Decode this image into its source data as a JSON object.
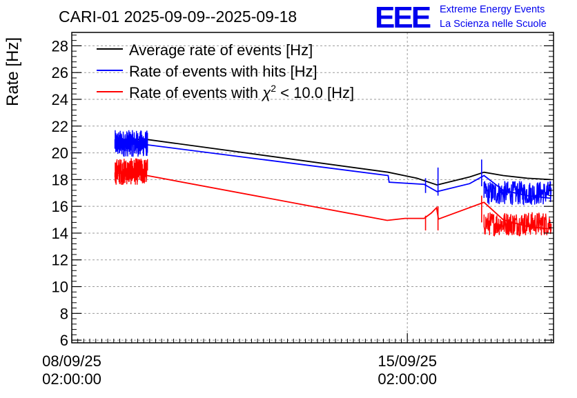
{
  "chart_data": {
    "type": "line",
    "title": "CARI-01 2025-09-09--2025-09-18",
    "ylabel": "Rate [Hz]",
    "xlabel": "",
    "ylim": [
      5.8,
      29
    ],
    "y_ticks": [
      6,
      8,
      10,
      12,
      14,
      16,
      18,
      20,
      22,
      24,
      26,
      28
    ],
    "x_unit": "days since 08/09/25 02:00:00",
    "xlim": [
      0,
      10.05
    ],
    "x_ticks": [
      {
        "x": 0,
        "date": "08/09/25",
        "time": "02:00:00"
      },
      {
        "x": 7,
        "date": "15/09/25",
        "time": "02:00:00"
      }
    ],
    "grid": true,
    "legend_position": "top-left",
    "series": [
      {
        "name": "Average rate of events [Hz]",
        "color": "#000000",
        "x": [
          0.9,
          1.57,
          6.6,
          7.2,
          7.62,
          8.3,
          8.6,
          9.0,
          9.5,
          10.0
        ],
        "y": [
          21.0,
          21.0,
          18.55,
          18.1,
          17.6,
          18.2,
          18.55,
          18.3,
          18.1,
          18.0
        ]
      },
      {
        "name": "Rate of events with hits [Hz]",
        "color": "#0000ff",
        "x": [
          0.9,
          1.57,
          6.6,
          6.62,
          7.35,
          7.62,
          8.3,
          8.6,
          9.0,
          9.5,
          10.0
        ],
        "y": [
          20.7,
          20.6,
          18.3,
          17.8,
          17.65,
          17.1,
          17.7,
          18.3,
          17.2,
          16.8,
          16.6
        ],
        "noise_band": [
          {
            "x_start": 0.9,
            "x_end": 1.58,
            "center": 20.7,
            "amplitude": 1.0
          },
          {
            "x_start": 8.6,
            "x_end": 10.0,
            "center": 17.0,
            "amplitude": 0.9
          }
        ]
      },
      {
        "name": "Rate of events with χ² < 10.0 [Hz]",
        "color": "#ff0000",
        "x": [
          0.9,
          1.57,
          6.58,
          6.95,
          7.35,
          7.5,
          7.61,
          7.65,
          8.6,
          9.0,
          9.5,
          10.0
        ],
        "y": [
          18.5,
          18.3,
          14.95,
          15.1,
          15.1,
          15.5,
          15.9,
          15.05,
          16.3,
          15.0,
          14.5,
          14.3
        ],
        "noise_band": [
          {
            "x_start": 0.9,
            "x_end": 1.58,
            "center": 18.6,
            "amplitude": 1.0
          },
          {
            "x_start": 8.6,
            "x_end": 10.0,
            "center": 14.7,
            "amplitude": 0.9
          }
        ]
      }
    ],
    "spikes": [
      {
        "series": 1,
        "x": 7.38,
        "y_low": 17.0,
        "y_high": 18.1
      },
      {
        "series": 1,
        "x": 7.64,
        "y_low": 16.8,
        "y_high": 18.9
      },
      {
        "series": 1,
        "x": 8.55,
        "y_low": 17.5,
        "y_high": 19.5
      },
      {
        "series": 2,
        "x": 7.38,
        "y_low": 14.2,
        "y_high": 15.3
      },
      {
        "series": 2,
        "x": 7.64,
        "y_low": 14.2,
        "y_high": 16.0
      },
      {
        "series": 2,
        "x": 8.55,
        "y_low": 14.8,
        "y_high": 16.8
      }
    ]
  },
  "legend": {
    "items": [
      {
        "label": "Average rate of events [Hz]",
        "color": "#000000"
      },
      {
        "label": "Rate of events with hits [Hz]",
        "color": "#0000ff"
      },
      {
        "label_prefix": "Rate of events with ",
        "label_symbol": "χ",
        "label_sup": "2",
        "label_suffix": " < 10.0 [Hz]",
        "color": "#ff0000"
      }
    ]
  },
  "logo": {
    "letters": "EEE",
    "line1": "Extreme Energy Events",
    "line2": "La Scienza nelle Scuole",
    "color": "#0000ee"
  }
}
